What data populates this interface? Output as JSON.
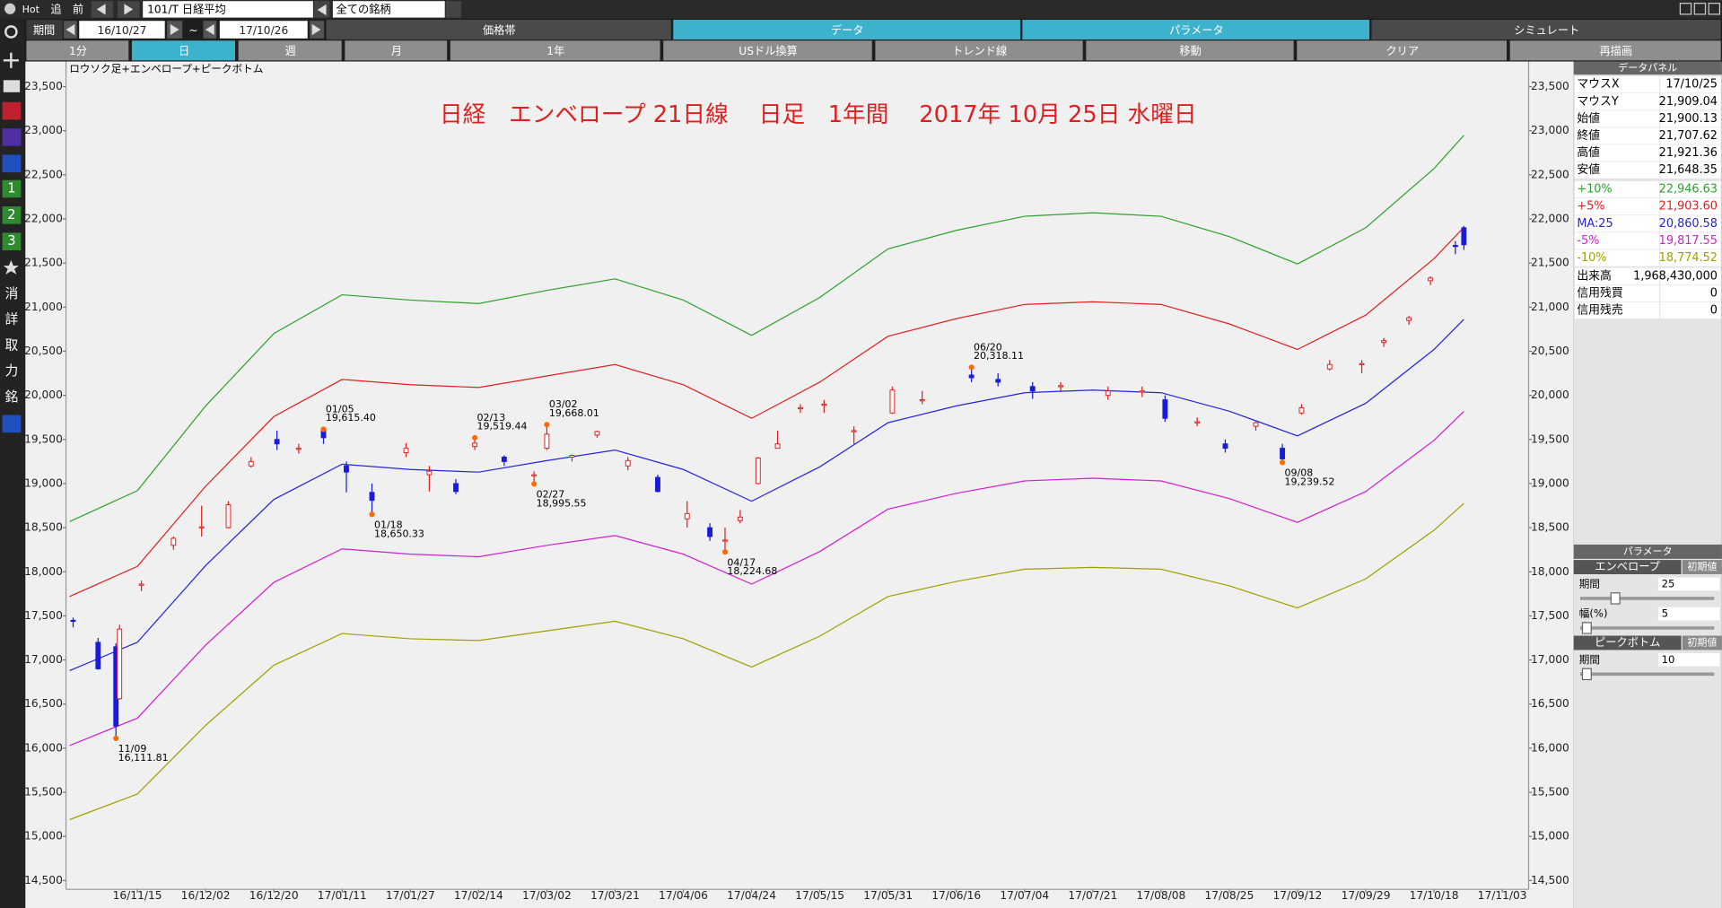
{
  "toolbar": {
    "hot": "Hot",
    "add": "追",
    "prev": "前",
    "symbol": "101/T 日経平均",
    "filter": "全ての銘柄"
  },
  "period": {
    "label": "期間",
    "from": "16/10/27",
    "sep": "~",
    "to": "17/10/26"
  },
  "tabs": [
    "価格帯",
    "データ",
    "パラメータ",
    "シミュレート"
  ],
  "buttons": [
    "1分",
    "日",
    "週",
    "月",
    "1年",
    "USドル換算",
    "トレンド線",
    "移動",
    "クリア",
    "再描画"
  ],
  "sidebar": [
    "1",
    "2",
    "3",
    "消",
    "詳",
    "取",
    "力",
    "銘"
  ],
  "data_panel": {
    "title": "データパネル",
    "rows": [
      {
        "label": "マウスX",
        "value": "17/10/25"
      },
      {
        "label": "マウスY",
        "value": "21,909.04"
      },
      {
        "label": "始値",
        "value": "21,900.13"
      },
      {
        "label": "終値",
        "value": "21,707.62"
      },
      {
        "label": "高値",
        "value": "21,921.36"
      },
      {
        "label": "安値",
        "value": "21,648.35"
      }
    ],
    "envelope": [
      "22,946.63",
      "21,903.60",
      "20,860.58",
      "19,817.55",
      "18,774.52"
    ],
    "extra": [
      {
        "label": "出来高",
        "value": "1,968,430,000"
      },
      {
        "label": "信用残買",
        "value": "0"
      },
      {
        "label": "信用残売",
        "value": "0"
      }
    ]
  },
  "parameters": {
    "title": "パラメータ",
    "envelope": {
      "title": "エンベロープ",
      "reset": "初期値",
      "period_label": "期間",
      "period": "25",
      "width_label": "幅(%)",
      "width": "5"
    },
    "peak_bottom": {
      "title": "ピークボトム",
      "reset": "初期値",
      "period_label": "期間",
      "period": "10"
    }
  },
  "chart_data": {
    "type": "candlestick",
    "indicator": "ロウソク足+エンベロープ+ピークボトム",
    "title": "日経　エンベロープ 21日線　 日足　1年間　 2017年 10月 25日 水曜日",
    "ylim": [
      14400,
      23760
    ],
    "yticks": [
      {
        "value": 14500,
        "label": "14,500"
      },
      {
        "value": 15000,
        "label": "15,000"
      },
      {
        "value": 15500,
        "label": "15,500"
      },
      {
        "value": 16000,
        "label": "16,000"
      },
      {
        "value": 16500,
        "label": "16,500"
      },
      {
        "value": 17000,
        "label": "17,000"
      },
      {
        "value": 17500,
        "label": "17,500"
      },
      {
        "value": 18000,
        "label": "18,000"
      },
      {
        "value": 18500,
        "label": "18,500"
      },
      {
        "value": 19000,
        "label": "19,000"
      },
      {
        "value": 19500,
        "label": "19,500"
      },
      {
        "value": 20000,
        "label": "20,000"
      },
      {
        "value": 20500,
        "label": "20,500"
      },
      {
        "value": 21000,
        "label": "21,000"
      },
      {
        "value": 21500,
        "label": "21,500"
      },
      {
        "value": 22000,
        "label": "22,000"
      },
      {
        "value": 22500,
        "label": "22,500"
      },
      {
        "value": 23000,
        "label": "23,000"
      },
      {
        "value": 23500,
        "label": "23,500"
      }
    ],
    "xlim": [
      "16/10/26",
      "17/11/08"
    ],
    "xticks": [
      "16/11/15",
      "16/12/02",
      "16/12/20",
      "17/01/11",
      "17/01/27",
      "17/02/14",
      "17/03/02",
      "17/03/21",
      "17/04/06",
      "17/04/24",
      "17/05/15",
      "17/05/31",
      "17/06/16",
      "17/07/04",
      "17/07/21",
      "17/08/08",
      "17/08/25",
      "17/09/12",
      "17/09/29",
      "17/10/18",
      "17/11/03"
    ],
    "up_color": "#e02020",
    "down_color": "#1a1adc",
    "peak_color": "#ff6a00",
    "candles": {
      "x": [
        "16/10/28",
        "16/11/04",
        "16/11/09",
        "16/11/10",
        "16/11/16",
        "16/11/24",
        "16/12/01",
        "16/12/08",
        "16/12/14",
        "16/12/21",
        "16/12/28",
        "17/01/05",
        "17/01/12",
        "17/01/18",
        "17/01/26",
        "17/02/01",
        "17/02/08",
        "17/02/13",
        "17/02/20",
        "17/02/27",
        "17/03/02",
        "17/03/09",
        "17/03/16",
        "17/03/24",
        "17/03/31",
        "17/04/07",
        "17/04/13",
        "17/04/17",
        "17/04/21",
        "17/04/26",
        "17/05/02",
        "17/05/09",
        "17/05/16",
        "17/05/23",
        "17/06/01",
        "17/06/08",
        "17/06/20",
        "17/06/27",
        "17/07/06",
        "17/07/13",
        "17/07/25",
        "17/08/03",
        "17/08/09",
        "17/08/17",
        "17/08/24",
        "17/09/01",
        "17/09/08",
        "17/09/13",
        "17/09/20",
        "17/09/28",
        "17/10/04",
        "17/10/11",
        "17/10/17",
        "17/10/23",
        "17/10/25"
      ],
      "open": [
        17450,
        17200,
        17150,
        16560,
        17860,
        18300,
        18500,
        18500,
        19200,
        19500,
        19400,
        19610,
        19200,
        18900,
        19350,
        19100,
        19000,
        19420,
        19300,
        19100,
        19400,
        19300,
        19550,
        19200,
        19070,
        18600,
        18500,
        18350,
        18580,
        19000,
        19400,
        19850,
        19900,
        19600,
        19800,
        19950,
        20230,
        20180,
        20100,
        20100,
        20000,
        20050,
        19950,
        19700,
        19450,
        19650,
        19400,
        19800,
        20300,
        20350,
        20600,
        20850,
        21300,
        21700,
        21900.13
      ],
      "high": [
        17480,
        17250,
        17190,
        17400,
        17900,
        18400,
        18750,
        18800,
        19300,
        19600,
        19450,
        19615,
        19250,
        19000,
        19460,
        19200,
        19050,
        19519,
        19320,
        19140,
        19668,
        19330,
        19600,
        19300,
        19100,
        18800,
        18550,
        18500,
        18700,
        19300,
        19600,
        19900,
        19950,
        19650,
        20100,
        20050,
        20318,
        20250,
        20150,
        20150,
        20100,
        20100,
        20000,
        19750,
        19500,
        19700,
        19450,
        19900,
        20400,
        20400,
        20650,
        20900,
        21350,
        21750,
        21921.36
      ],
      "low": [
        17370,
        16890,
        16110,
        16550,
        17780,
        18250,
        18400,
        18490,
        19180,
        19380,
        19340,
        19450,
        18900,
        18650,
        19300,
        18910,
        18880,
        19380,
        19200,
        18996,
        19380,
        19250,
        19520,
        19150,
        18900,
        18500,
        18350,
        18225,
        18550,
        18990,
        19400,
        19800,
        19800,
        19450,
        19790,
        19900,
        20150,
        20100,
        19960,
        20050,
        19950,
        19980,
        19700,
        19650,
        19350,
        19600,
        19240,
        19780,
        20280,
        20250,
        20550,
        20800,
        21250,
        21600,
        21648.35
      ],
      "close": [
        17440,
        16900,
        16250,
        17350,
        17860,
        18380,
        18510,
        18760,
        19250,
        19450,
        19400,
        19520,
        19130,
        18810,
        19400,
        19140,
        18910,
        19459,
        19250,
        19100,
        19560,
        19320,
        19590,
        19260,
        18910,
        18660,
        18400,
        18360,
        18620,
        19290,
        19450,
        19860,
        19900,
        19600,
        20060,
        19950,
        20200,
        20150,
        20050,
        20110,
        20050,
        20050,
        19740,
        19700,
        19400,
        19690,
        19280,
        19860,
        20350,
        20360,
        20620,
        20880,
        21330,
        21690,
        21707.62
      ]
    },
    "x": [
      "16/10/27",
      "16/11/15",
      "16/12/02",
      "16/12/20",
      "17/01/11",
      "17/01/27",
      "17/02/14",
      "17/03/02",
      "17/03/21",
      "17/04/06",
      "17/04/24",
      "17/05/15",
      "17/05/31",
      "17/06/16",
      "17/07/04",
      "17/07/21",
      "17/08/08",
      "17/08/25",
      "17/09/12",
      "17/09/29",
      "17/10/18",
      "17/10/25"
    ],
    "series": [
      {
        "name": "+10%",
        "color": "#2ea02e",
        "values": [
          18570,
          18920,
          19880,
          20700,
          21140,
          21080,
          21040,
          21190,
          21320,
          21080,
          20680,
          21110,
          21660,
          21870,
          22030,
          22070,
          22030,
          21800,
          21490,
          21900,
          22570,
          22946.63
        ]
      },
      {
        "name": "+5%",
        "color": "#e02020",
        "values": [
          17720,
          18060,
          18970,
          19760,
          20180,
          20120,
          20090,
          20220,
          20350,
          20120,
          19740,
          20150,
          20670,
          20870,
          21030,
          21060,
          21030,
          20810,
          20520,
          20910,
          21550,
          21903.6
        ]
      },
      {
        "name": "MA:25",
        "color": "#2424d8",
        "values": [
          16880,
          17200,
          18070,
          18820,
          19220,
          19160,
          19130,
          19260,
          19380,
          19160,
          18800,
          19190,
          19690,
          19880,
          20030,
          20060,
          20030,
          19820,
          19540,
          19910,
          20520,
          20860.58
        ]
      },
      {
        "name": "-5%",
        "color": "#d020d0",
        "values": [
          16030,
          16340,
          17170,
          17880,
          18260,
          18200,
          18170,
          18300,
          18410,
          18200,
          17860,
          18230,
          18710,
          18890,
          19030,
          19060,
          19030,
          18830,
          18560,
          18910,
          19490,
          19817.55
        ]
      },
      {
        "name": "-10%",
        "color": "#a0a000",
        "values": [
          15190,
          15480,
          16260,
          16940,
          17300,
          17240,
          17220,
          17330,
          17440,
          17240,
          16920,
          17270,
          17720,
          17890,
          18030,
          18050,
          18030,
          17840,
          17590,
          17920,
          18470,
          18774.52
        ]
      }
    ],
    "annotations": [
      {
        "date": "11/09",
        "value": 16111.81,
        "value_label": "16,111.81"
      },
      {
        "date": "01/05",
        "value": 19615.4,
        "value_label": "19,615.40"
      },
      {
        "date": "01/18",
        "value": 18650.33,
        "value_label": "18,650.33"
      },
      {
        "date": "02/13",
        "value": 19519.44,
        "value_label": "19,519.44"
      },
      {
        "date": "02/27",
        "value": 18995.55,
        "value_label": "18,995.55"
      },
      {
        "date": "03/02",
        "value": 19668.01,
        "value_label": "19,668.01"
      },
      {
        "date": "04/17",
        "value": 18224.68,
        "value_label": "18,224.68"
      },
      {
        "date": "06/20",
        "value": 20318.11,
        "value_label": "20,318.11"
      },
      {
        "date": "09/08",
        "value": 19239.52,
        "value_label": "19,239.52"
      }
    ]
  }
}
